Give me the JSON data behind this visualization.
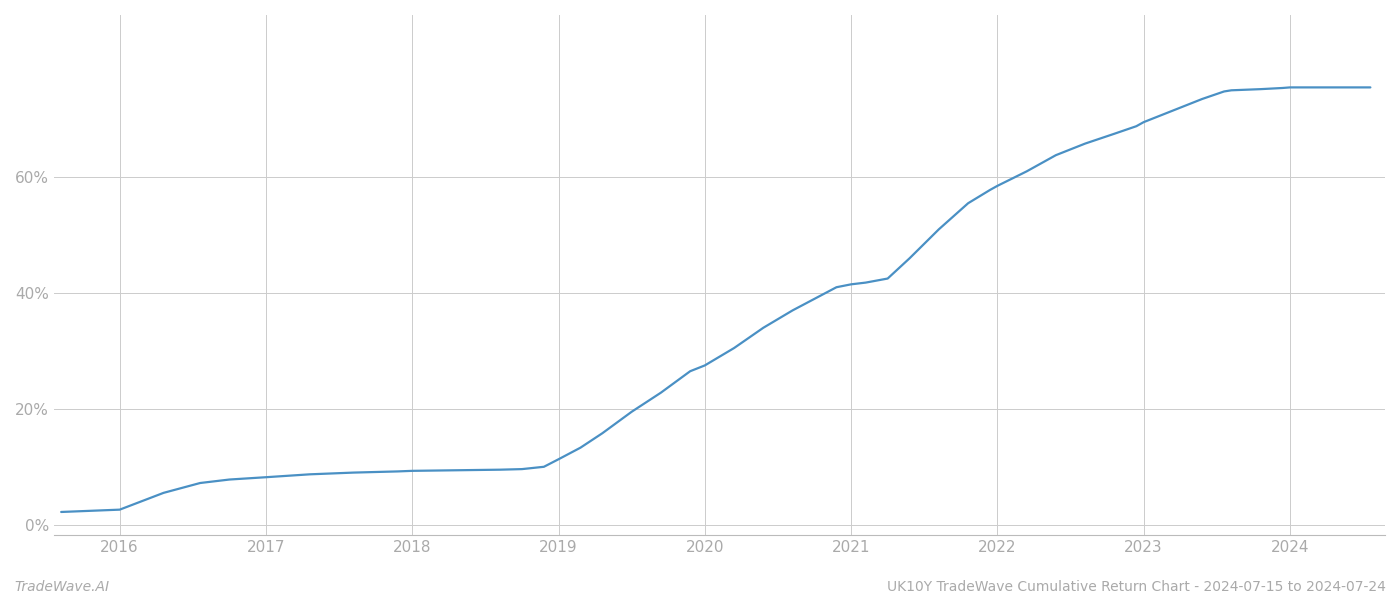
{
  "title": "UK10Y TradeWave Cumulative Return Chart - 2024-07-15 to 2024-07-24",
  "left_label": "TradeWave.AI",
  "line_color": "#4a90c4",
  "background_color": "#ffffff",
  "grid_color": "#cccccc",
  "x_years": [
    2016,
    2017,
    2018,
    2019,
    2020,
    2021,
    2022,
    2023,
    2024
  ],
  "x_data": [
    2015.6,
    2016.0,
    2016.3,
    2016.55,
    2016.75,
    2017.0,
    2017.3,
    2017.6,
    2017.9,
    2018.0,
    2018.3,
    2018.6,
    2018.75,
    2018.9,
    2019.0,
    2019.15,
    2019.3,
    2019.5,
    2019.7,
    2019.9,
    2020.0,
    2020.2,
    2020.4,
    2020.6,
    2020.75,
    2020.9,
    2021.0,
    2021.1,
    2021.25,
    2021.4,
    2021.6,
    2021.8,
    2021.95,
    2022.0,
    2022.2,
    2022.4,
    2022.6,
    2022.8,
    2022.95,
    2023.0,
    2023.2,
    2023.4,
    2023.55,
    2023.6,
    2023.8,
    2023.95,
    2024.0,
    2024.3,
    2024.55
  ],
  "y_data": [
    0.022,
    0.026,
    0.055,
    0.072,
    0.078,
    0.082,
    0.087,
    0.09,
    0.092,
    0.093,
    0.094,
    0.095,
    0.096,
    0.1,
    0.113,
    0.133,
    0.158,
    0.195,
    0.228,
    0.265,
    0.275,
    0.305,
    0.34,
    0.37,
    0.39,
    0.41,
    0.415,
    0.418,
    0.425,
    0.46,
    0.51,
    0.555,
    0.578,
    0.585,
    0.61,
    0.638,
    0.658,
    0.675,
    0.688,
    0.695,
    0.715,
    0.735,
    0.748,
    0.75,
    0.752,
    0.754,
    0.755,
    0.755,
    0.755
  ],
  "ylim": [
    -0.018,
    0.88
  ],
  "xlim": [
    2015.55,
    2024.65
  ],
  "yticks": [
    0.0,
    0.2,
    0.4,
    0.6
  ],
  "ytick_labels": [
    "0%",
    "20%",
    "40%",
    "60%"
  ],
  "label_fontsize": 10,
  "tick_fontsize": 11,
  "line_width": 1.6
}
